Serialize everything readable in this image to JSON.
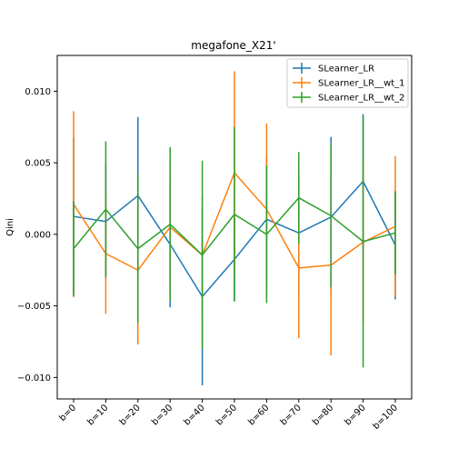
{
  "chart_data": {
    "type": "line",
    "title": "megafone_X21'",
    "xlabel": "",
    "ylabel": "Qini",
    "categories": [
      "b=0",
      "b=10",
      "b=20",
      "b=30",
      "b=40",
      "b=50",
      "b=60",
      "b=70",
      "b=80",
      "b=90",
      "b=100"
    ],
    "ylim": [
      -0.0115,
      0.0125
    ],
    "yticks": [
      -0.01,
      -0.005,
      0.0,
      0.005,
      0.01
    ],
    "ytick_labels": [
      "−0.010",
      "−0.005",
      "0.000",
      "0.005",
      "0.010"
    ],
    "grid": false,
    "legend_position": "top-right",
    "series": [
      {
        "name": "SLearner_LR",
        "color": "#1f77b4",
        "values": [
          0.00125,
          0.0009,
          0.0027,
          -0.0007,
          -0.00435,
          -0.00175,
          0.00105,
          0.0001,
          0.0012,
          0.0037,
          -0.00075
        ],
        "errors": [
          0.0055,
          0.004,
          0.0055,
          0.0044,
          0.0062,
          0.0029,
          0.0044,
          0.0043,
          0.0056,
          0.0047,
          0.0038
        ]
      },
      {
        "name": "SLearner_LR__wt_1",
        "color": "#ff7f0e",
        "values": [
          0.0021,
          -0.00135,
          -0.0025,
          0.0005,
          -0.00145,
          0.0043,
          0.00175,
          -0.00235,
          -0.00215,
          -0.00055,
          0.00055
        ],
        "errors": [
          0.0065,
          0.0042,
          0.0052,
          0.0046,
          0.0042,
          0.0071,
          0.006,
          0.0049,
          0.0063,
          0.0058,
          0.0049
        ]
      },
      {
        "name": "SLearner_LR__wt_2",
        "color": "#2ca02c",
        "values": [
          -0.001,
          0.00175,
          -0.001,
          0.0007,
          -0.00145,
          0.0014,
          0.0,
          0.00255,
          0.0013,
          -0.0005,
          0.0001
        ],
        "errors": [
          0.0033,
          0.00475,
          0.0052,
          0.0054,
          0.0066,
          0.0061,
          0.0048,
          0.0032,
          0.005,
          0.0088,
          0.0029
        ]
      }
    ]
  }
}
